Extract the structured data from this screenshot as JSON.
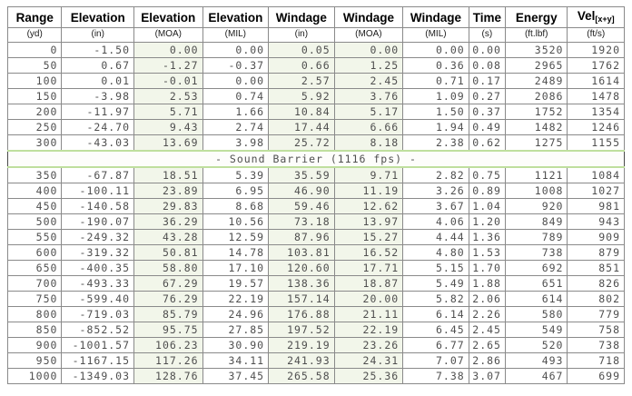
{
  "colors": {
    "page_bg": "#ffffff",
    "border_outer": "#4a4a4a",
    "border_cell": "#8a8a8a",
    "text_data": "#4f4f4f",
    "text_header": "#000000",
    "tint_column_bg": "#f2f6ea",
    "divider_line": "#bfdf9e"
  },
  "chart_data": {
    "type": "table",
    "title": "Ballistic trajectory table",
    "columns": [
      {
        "label": "Range",
        "label_sub": "",
        "unit": "(yd)"
      },
      {
        "label": "Elevation",
        "label_sub": "",
        "unit": "(in)"
      },
      {
        "label": "Elevation",
        "label_sub": "",
        "unit": "(MOA)"
      },
      {
        "label": "Elevation",
        "label_sub": "",
        "unit": "(MIL)"
      },
      {
        "label": "Windage",
        "label_sub": "",
        "unit": "(in)"
      },
      {
        "label": "Windage",
        "label_sub": "",
        "unit": "(MOA)"
      },
      {
        "label": "Windage",
        "label_sub": "",
        "unit": "(MIL)"
      },
      {
        "label": "Time",
        "label_sub": "",
        "unit": "(s)"
      },
      {
        "label": "Energy",
        "label_sub": "",
        "unit": "(ft.lbf)"
      },
      {
        "label": "Vel",
        "label_sub": "[x+y]",
        "unit": "(ft/s)"
      }
    ],
    "tinted_columns": [
      2,
      4,
      5
    ],
    "sections": [
      {
        "rows": [
          [
            "0",
            "-1.50",
            "0.00",
            "0.00",
            "0.05",
            "0.00",
            "0.00",
            "0.00",
            "3520",
            "1920"
          ],
          [
            "50",
            "0.67",
            "-1.27",
            "-0.37",
            "0.66",
            "1.25",
            "0.36",
            "0.08",
            "2965",
            "1762"
          ],
          [
            "100",
            "0.01",
            "-0.01",
            "0.00",
            "2.57",
            "2.45",
            "0.71",
            "0.17",
            "2489",
            "1614"
          ],
          [
            "150",
            "-3.98",
            "2.53",
            "0.74",
            "5.92",
            "3.76",
            "1.09",
            "0.27",
            "2086",
            "1478"
          ],
          [
            "200",
            "-11.97",
            "5.71",
            "1.66",
            "10.84",
            "5.17",
            "1.50",
            "0.37",
            "1752",
            "1354"
          ],
          [
            "250",
            "-24.70",
            "9.43",
            "2.74",
            "17.44",
            "6.66",
            "1.94",
            "0.49",
            "1482",
            "1246"
          ],
          [
            "300",
            "-43.03",
            "13.69",
            "3.98",
            "25.72",
            "8.18",
            "2.38",
            "0.62",
            "1275",
            "1155"
          ]
        ]
      },
      {
        "divider": "- Sound Barrier (1116 fps) -"
      },
      {
        "rows": [
          [
            "350",
            "-67.87",
            "18.51",
            "5.39",
            "35.59",
            "9.71",
            "2.82",
            "0.75",
            "1121",
            "1084"
          ],
          [
            "400",
            "-100.11",
            "23.89",
            "6.95",
            "46.90",
            "11.19",
            "3.26",
            "0.89",
            "1008",
            "1027"
          ],
          [
            "450",
            "-140.58",
            "29.83",
            "8.68",
            "59.46",
            "12.62",
            "3.67",
            "1.04",
            "920",
            "981"
          ],
          [
            "500",
            "-190.07",
            "36.29",
            "10.56",
            "73.18",
            "13.97",
            "4.06",
            "1.20",
            "849",
            "943"
          ],
          [
            "550",
            "-249.32",
            "43.28",
            "12.59",
            "87.96",
            "15.27",
            "4.44",
            "1.36",
            "789",
            "909"
          ],
          [
            "600",
            "-319.32",
            "50.81",
            "14.78",
            "103.81",
            "16.52",
            "4.80",
            "1.53",
            "738",
            "879"
          ],
          [
            "650",
            "-400.35",
            "58.80",
            "17.10",
            "120.60",
            "17.71",
            "5.15",
            "1.70",
            "692",
            "851"
          ],
          [
            "700",
            "-493.33",
            "67.29",
            "19.57",
            "138.36",
            "18.87",
            "5.49",
            "1.88",
            "651",
            "826"
          ],
          [
            "750",
            "-599.40",
            "76.29",
            "22.19",
            "157.14",
            "20.00",
            "5.82",
            "2.06",
            "614",
            "802"
          ],
          [
            "800",
            "-719.03",
            "85.79",
            "24.96",
            "176.88",
            "21.11",
            "6.14",
            "2.26",
            "580",
            "779"
          ],
          [
            "850",
            "-852.52",
            "95.75",
            "27.85",
            "197.52",
            "22.19",
            "6.45",
            "2.45",
            "549",
            "758"
          ],
          [
            "900",
            "-1001.57",
            "106.23",
            "30.90",
            "219.19",
            "23.26",
            "6.77",
            "2.65",
            "520",
            "738"
          ],
          [
            "950",
            "-1167.15",
            "117.26",
            "34.11",
            "241.93",
            "24.31",
            "7.07",
            "2.86",
            "493",
            "718"
          ],
          [
            "1000",
            "-1349.03",
            "128.76",
            "37.45",
            "265.58",
            "25.36",
            "7.38",
            "3.07",
            "467",
            "699"
          ]
        ]
      }
    ]
  }
}
